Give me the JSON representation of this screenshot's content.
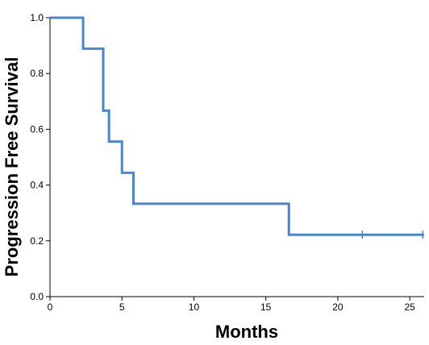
{
  "chart_data": {
    "type": "line",
    "subtype": "kaplan-meier-step",
    "title": "",
    "xlabel": "Months",
    "ylabel": "Progression Free Survival",
    "xlim": [
      0,
      26
    ],
    "ylim": [
      0,
      1.0
    ],
    "x_ticks": [
      0,
      5,
      10,
      15,
      20,
      25
    ],
    "y_ticks": [
      0.0,
      0.2,
      0.4,
      0.6,
      0.8,
      1.0
    ],
    "y_tick_labels": [
      "0.0",
      "0.2",
      "0.4",
      "0.6",
      "0.8",
      "1.0"
    ],
    "grid": false,
    "legend": "none",
    "series": [
      {
        "color": "#4a86cf",
        "steps": [
          {
            "x": 0,
            "y": 1.0
          },
          {
            "x": 2.3,
            "y": 0.889
          },
          {
            "x": 3.7,
            "y": 0.667
          },
          {
            "x": 4.1,
            "y": 0.556
          },
          {
            "x": 5.0,
            "y": 0.444
          },
          {
            "x": 5.8,
            "y": 0.333
          },
          {
            "x": 16.6,
            "y": 0.222
          }
        ],
        "end_x": 26,
        "censored": [
          {
            "x": 3.7,
            "y": 0.778
          },
          {
            "x": 21.7,
            "y": 0.222
          },
          {
            "x": 25.9,
            "y": 0.222
          }
        ]
      }
    ]
  }
}
